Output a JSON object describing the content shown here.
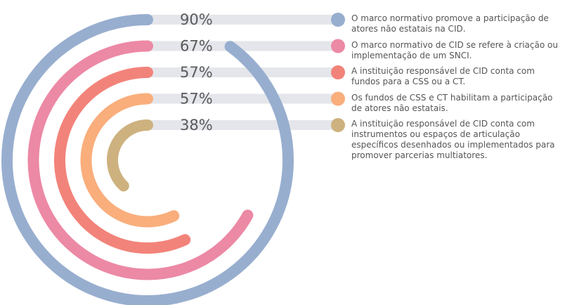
{
  "chart_data": {
    "type": "radial-bar",
    "categories": [
      "O marco normativo promove a participação de atores não estatais na CID.",
      "O marco normativo de CID se refere à criação ou implementação de um SNCI.",
      "A instituição responsável de CID conta com fundos para a CSS ou a CT.",
      "Os fundos de CSS e CT habilitam a participação de atores não estatais.",
      "A instituição responsável de CID conta com instrumentos ou espaços de articulação específicos desenhados ou implementados para promover parcerias multiatores."
    ],
    "values": [
      90,
      67,
      57,
      57,
      38
    ],
    "value_labels": [
      "90%",
      "67%",
      "57%",
      "57%",
      "38%"
    ],
    "colors": [
      "#98aecf",
      "#ec89a5",
      "#f2837a",
      "#f9ae7c",
      "#cdb27f"
    ],
    "ylim": [
      0,
      100
    ]
  }
}
